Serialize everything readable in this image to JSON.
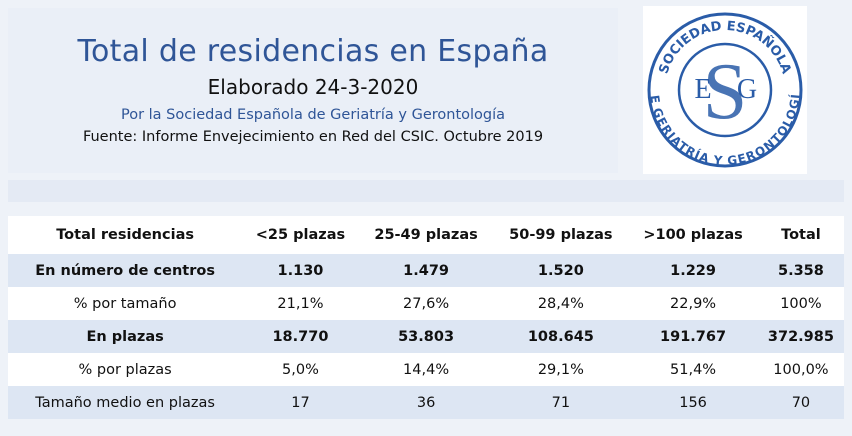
{
  "header": {
    "title": "Total de residencias en España",
    "subtitle": "Elaborado 24-3-2020",
    "byline": "Por la Sociedad Española de Geriatría y Gerontología",
    "source": "Fuente: Informe Envejecimiento en Red del CSIC. Octubre 2019"
  },
  "logo": {
    "top_text": "SOCIEDAD ESPAÑOLA",
    "bottom_text": "DE GERIATRÍA Y GERONTOLOGÍA",
    "letters": [
      "S",
      "E",
      "G"
    ]
  },
  "table": {
    "header": [
      "Total residencias",
      "<25 plazas",
      "25-49 plazas",
      "50-99 plazas",
      ">100 plazas",
      "Total"
    ],
    "rows": [
      [
        "En número de centros",
        "1.130",
        "1.479",
        "1.520",
        "1.229",
        "5.358"
      ],
      [
        "% por tamaño",
        "21,1%",
        "27,6%",
        "28,4%",
        "22,9%",
        "100%"
      ],
      [
        "En plazas",
        "18.770",
        "53.803",
        "108.645",
        "191.767",
        "372.985"
      ],
      [
        "% por plazas",
        "5,0%",
        "14,4%",
        "29,1%",
        "51,4%",
        "100,0%"
      ],
      [
        "Tamaño medio en plazas",
        "17",
        "36",
        "71",
        "156",
        "70"
      ]
    ]
  }
}
